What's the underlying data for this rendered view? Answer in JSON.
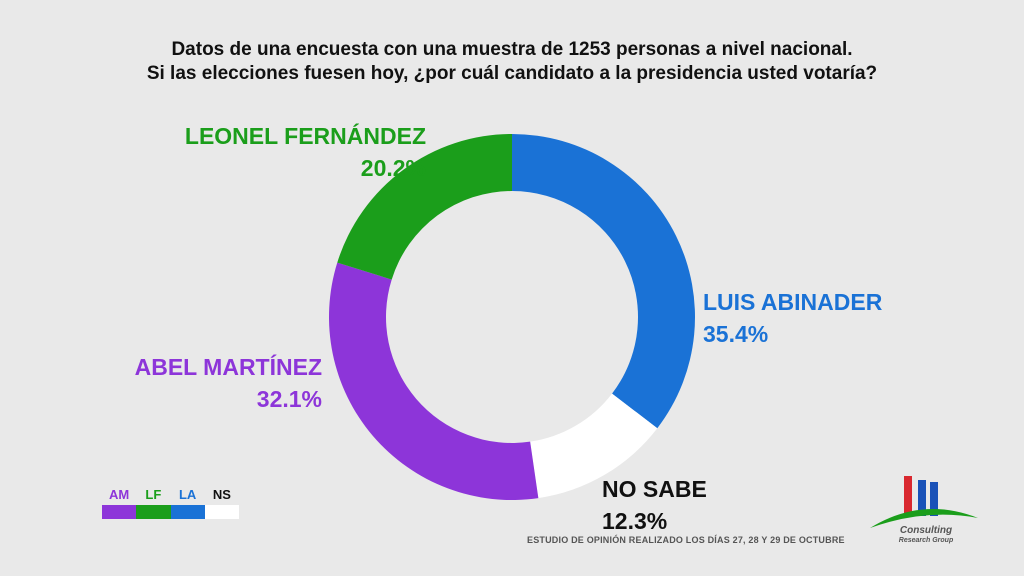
{
  "title": {
    "line1": "Datos de una encuesta con una muestra de 1253 personas a nivel nacional.",
    "line2": "Si las elecciones fuesen hoy, ¿por cuál candidato a la presidencia usted votaría?"
  },
  "chart_data": {
    "type": "pie",
    "donut": true,
    "slices": [
      {
        "key": "LA",
        "label": "LUIS ABINADER",
        "value": 35.4,
        "value_label": "35.4%",
        "color": "#1a72d6"
      },
      {
        "key": "NS",
        "label": "NO SABE",
        "value": 12.3,
        "value_label": "12.3%",
        "color": "#ffffff"
      },
      {
        "key": "AM",
        "label": "ABEL MARTÍNEZ",
        "value": 32.1,
        "value_label": "32.1%",
        "color": "#8d35d9"
      },
      {
        "key": "LF",
        "label": "LEONEL FERNÁNDEZ",
        "value": 20.2,
        "value_label": "20.2%",
        "color": "#1b9e1b"
      }
    ]
  },
  "legend": {
    "items": [
      {
        "key": "AM",
        "color": "#8d35d9"
      },
      {
        "key": "LF",
        "color": "#1b9e1b"
      },
      {
        "key": "LA",
        "color": "#1a72d6"
      },
      {
        "key": "NS",
        "color": "#ffffff",
        "text_color": "#111111"
      }
    ]
  },
  "footnote": "ESTUDIO DE OPINIÓN REALIZADO LOS DÍAS 27, 28 Y 29 DE OCTUBRE",
  "logo": {
    "name": "Consulting",
    "subtitle": "Research Group",
    "colors": {
      "red": "#d9282f",
      "blue": "#1a52b8",
      "green": "#1b9e1b"
    }
  }
}
